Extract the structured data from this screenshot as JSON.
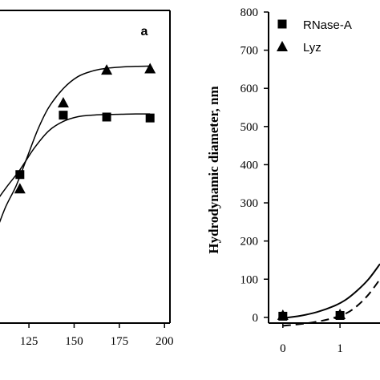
{
  "chart_data": [
    {
      "type": "scatter",
      "panel_label": "a",
      "x_ticks": [
        "125",
        "150",
        "175",
        "200"
      ],
      "xlim": [
        109,
        203
      ],
      "ylim": [
        0,
        1
      ],
      "series": [
        {
          "marker": "square",
          "points": [
            [
              120,
              0.475
            ],
            [
              144,
              0.665
            ],
            [
              168,
              0.659
            ],
            [
              192,
              0.656
            ]
          ],
          "fit": [
            [
              97,
              0.28
            ],
            [
              105,
              0.37
            ],
            [
              112,
              0.43
            ],
            [
              120,
              0.49
            ],
            [
              128,
              0.56
            ],
            [
              136,
              0.615
            ],
            [
              144,
              0.645
            ],
            [
              152,
              0.66
            ],
            [
              160,
              0.665
            ],
            [
              168,
              0.667
            ],
            [
              176,
              0.668
            ],
            [
              184,
              0.669
            ],
            [
              192,
              0.669
            ]
          ]
        },
        {
          "marker": "triangle",
          "points": [
            [
              120,
              0.43
            ],
            [
              144,
              0.705
            ],
            [
              168,
              0.81
            ],
            [
              192,
              0.814
            ]
          ],
          "fit": [
            [
              99,
              0.18
            ],
            [
              106,
              0.28
            ],
            [
              112,
              0.37
            ],
            [
              118,
              0.44
            ],
            [
              124,
              0.53
            ],
            [
              130,
              0.62
            ],
            [
              136,
              0.69
            ],
            [
              144,
              0.75
            ],
            [
              152,
              0.788
            ],
            [
              160,
              0.806
            ],
            [
              168,
              0.815
            ],
            [
              176,
              0.819
            ],
            [
              184,
              0.821
            ],
            [
              192,
              0.822
            ]
          ]
        }
      ]
    },
    {
      "type": "scatter",
      "ylabel": "Hydrodynamic diameter, nm",
      "y_ticks": [
        "0",
        "100",
        "200",
        "300",
        "400",
        "500",
        "600",
        "700",
        "800"
      ],
      "x_ticks": [
        "0",
        "1"
      ],
      "ylim": [
        -15,
        800
      ],
      "xlim": [
        -0.25,
        1.7
      ],
      "legend": {
        "placement": "top-left"
      },
      "series": [
        {
          "name": "RNase-A",
          "marker": "square",
          "points": [
            [
              0,
              3
            ],
            [
              1,
              5
            ]
          ],
          "fit_style": "dashed",
          "fit": [
            [
              0,
              -22
            ],
            [
              0.4,
              -16
            ],
            [
              0.8,
              -5
            ],
            [
              1.1,
              10
            ],
            [
              1.3,
              30
            ],
            [
              1.5,
              60
            ],
            [
              1.7,
              100
            ]
          ]
        },
        {
          "name": "Lyz",
          "marker": "triangle",
          "points": [
            [
              0,
              6
            ],
            [
              1,
              8
            ]
          ],
          "fit_style": "solid",
          "fit": [
            [
              0,
              -2
            ],
            [
              0.3,
              4
            ],
            [
              0.6,
              14
            ],
            [
              0.9,
              30
            ],
            [
              1.1,
              46
            ],
            [
              1.3,
              70
            ],
            [
              1.5,
              100
            ],
            [
              1.7,
              140
            ]
          ]
        }
      ]
    }
  ]
}
